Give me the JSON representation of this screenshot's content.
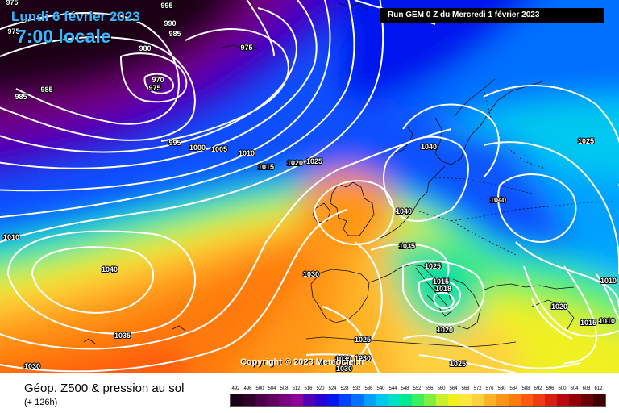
{
  "title": {
    "date": "Lundi 6 février 2023",
    "time": "7:00 locale"
  },
  "run_info": "Run GEM 0 Z du Mercredi 1 février 2023",
  "copyright": "Copyright © 2023 Meteociel.fr",
  "footer": {
    "title": "Géop. Z500 & pression au sol",
    "subtitle": "(+ 126h)"
  },
  "scale": {
    "values": [
      "492",
      "496",
      "500",
      "504",
      "508",
      "512",
      "516",
      "520",
      "524",
      "528",
      "532",
      "536",
      "540",
      "544",
      "548",
      "552",
      "556",
      "560",
      "564",
      "568",
      "572",
      "576",
      "580",
      "584",
      "588",
      "592",
      "596",
      "600",
      "604",
      "608",
      "612"
    ],
    "colors": [
      "#1a0018",
      "#30002c",
      "#4a0049",
      "#620062",
      "#7a0080",
      "#8f009b",
      "#5200b4",
      "#2800d4",
      "#0018ee",
      "#0040ff",
      "#0070ff",
      "#00a0ff",
      "#00c8f0",
      "#00e0c8",
      "#00eb90",
      "#38f060",
      "#80f040",
      "#c8f030",
      "#f0f020",
      "#ffe640",
      "#ffd040",
      "#ffb428",
      "#ff9618",
      "#ff7a10",
      "#ff5a10",
      "#f03c10",
      "#d82010",
      "#b80810",
      "#900008",
      "#680004",
      "#400000"
    ]
  },
  "isobar_labels": [
    {
      "text": "995"
    },
    {
      "text": "990"
    },
    {
      "text": "985"
    },
    {
      "text": "975"
    },
    {
      "text": "975"
    },
    {
      "text": "980"
    },
    {
      "text": "975"
    },
    {
      "text": "970"
    },
    {
      "text": "975"
    },
    {
      "text": "985"
    },
    {
      "text": "985"
    },
    {
      "text": "995"
    },
    {
      "text": "1000"
    },
    {
      "text": "1005"
    },
    {
      "text": "1010"
    },
    {
      "text": "1015"
    },
    {
      "text": "1020"
    },
    {
      "text": "1025"
    },
    {
      "text": "1040"
    },
    {
      "text": "1040"
    },
    {
      "text": "1040"
    },
    {
      "text": "1035"
    },
    {
      "text": "1025"
    },
    {
      "text": "1015"
    },
    {
      "text": "1018"
    },
    {
      "text": "1030"
    },
    {
      "text": "1040"
    },
    {
      "text": "1010"
    },
    {
      "text": "1035"
    },
    {
      "text": "1030"
    },
    {
      "text": "1025"
    },
    {
      "text": "1020"
    },
    {
      "text": "1030"
    },
    {
      "text": "1030"
    },
    {
      "text": "1030"
    },
    {
      "text": "1025"
    },
    {
      "text": "1025"
    },
    {
      "text": "1020"
    },
    {
      "text": "1015"
    },
    {
      "text": "1010"
    },
    {
      "text": "1010"
    }
  ]
}
